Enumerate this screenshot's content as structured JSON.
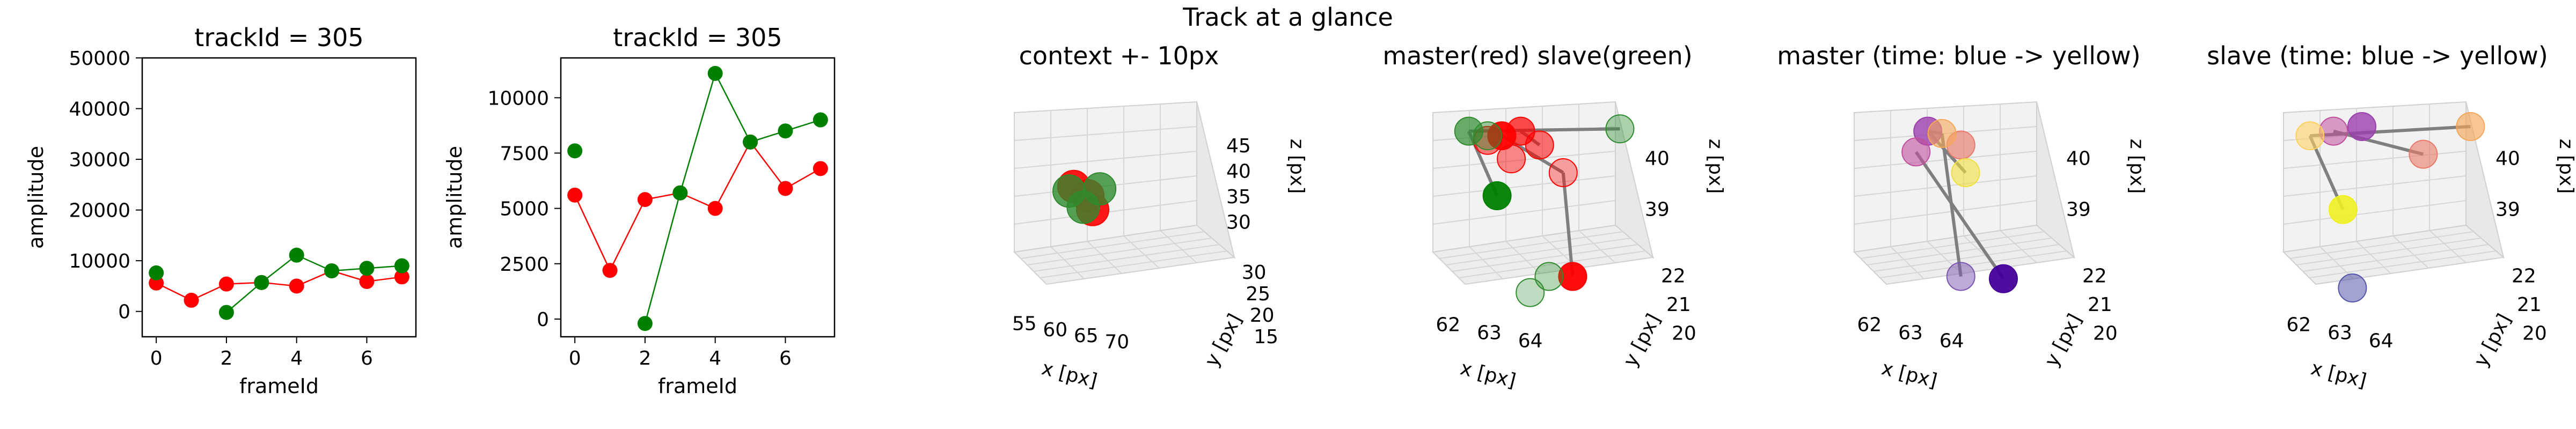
{
  "suptitle": "Track at a glance",
  "chart_data": [
    {
      "type": "line",
      "title": "trackId = 305",
      "xlabel": "frameId",
      "ylabel": "amplitude",
      "xlim": [
        -0.4,
        7.4
      ],
      "ylim": [
        -5000,
        50000
      ],
      "xticks": [
        0,
        2,
        4,
        6
      ],
      "yticks": [
        0,
        10000,
        20000,
        30000,
        40000,
        50000
      ],
      "ytick_labels": [
        "0",
        "10000",
        "20000",
        "30000",
        "40000",
        "50000"
      ],
      "series": [
        {
          "color": "#ff0000",
          "x": [
            0,
            1,
            2,
            3,
            4,
            5,
            6,
            7
          ],
          "values": [
            5600,
            2200,
            5400,
            5700,
            5000,
            8000,
            5900,
            6800
          ]
        },
        {
          "color": "#008000",
          "x": [
            0,
            2,
            3,
            4,
            5,
            6,
            7
          ],
          "values": [
            7600,
            -200,
            5700,
            11100,
            8000,
            8500,
            9000
          ],
          "connect_from": 1
        }
      ]
    },
    {
      "type": "line",
      "title": "trackId = 305",
      "xlabel": "frameId",
      "ylabel": "amplitude",
      "xlim": [
        -0.4,
        7.4
      ],
      "ylim": [
        -800,
        11800
      ],
      "xticks": [
        0,
        2,
        4,
        6
      ],
      "yticks": [
        0,
        2500,
        5000,
        7500,
        10000
      ],
      "ytick_labels": [
        "0",
        "2500",
        "5000",
        "7500",
        "10000"
      ],
      "series": [
        {
          "color": "#ff0000",
          "x": [
            0,
            1,
            2,
            3,
            4,
            5,
            6,
            7
          ],
          "values": [
            5600,
            2200,
            5400,
            5700,
            5000,
            8000,
            5900,
            6800
          ]
        },
        {
          "color": "#008000",
          "x": [
            0,
            2,
            3,
            4,
            5,
            6,
            7
          ],
          "values": [
            7600,
            -200,
            5700,
            11100,
            8000,
            8500,
            9000
          ],
          "connect_from": 1
        }
      ]
    },
    {
      "type": "scatter3d",
      "title": "context +- 10px",
      "xlabel": "x [px]",
      "ylabel": "y [px]",
      "zlabel": "z [px]",
      "xticks": [
        "55",
        "60",
        "65",
        "70"
      ],
      "yticks": [
        "15",
        "20",
        "25",
        "30"
      ],
      "zticks": [
        "30",
        "35",
        "40",
        "45"
      ],
      "points": [
        {
          "color": "#ff0000",
          "alpha": 0.9
        },
        {
          "color": "#ff0000",
          "alpha": 0.9
        },
        {
          "color": "#ff0000",
          "alpha": 0.9
        },
        {
          "color": "#2e8b2e",
          "alpha": 0.8
        },
        {
          "color": "#2e8b2e",
          "alpha": 0.8
        },
        {
          "color": "#2e8b2e",
          "alpha": 0.8
        }
      ]
    },
    {
      "type": "scatter3d",
      "title": "master(red) slave(green)",
      "xlabel": "x [px]",
      "ylabel": "y [px]",
      "zlabel": "z [px]",
      "xticks": [
        "62",
        "63",
        "64"
      ],
      "yticks": [
        "20",
        "21",
        "22"
      ],
      "zticks": [
        "39",
        "40"
      ],
      "points": [
        {
          "color": "#ff0000",
          "alpha": 0.95
        },
        {
          "color": "#ff0000",
          "alpha": 0.7
        },
        {
          "color": "#ff0000",
          "alpha": 0.55
        },
        {
          "color": "#ff0000",
          "alpha": 0.45
        },
        {
          "color": "#ff0000",
          "alpha": 0.5
        },
        {
          "color": "#ff0000",
          "alpha": 0.35
        },
        {
          "color": "#ff0000",
          "alpha": 0.95
        },
        {
          "color": "#008000",
          "alpha": 0.95
        },
        {
          "color": "#2e8b2e",
          "alpha": 0.7
        },
        {
          "color": "#2e8b2e",
          "alpha": 0.45
        },
        {
          "color": "#2e8b2e",
          "alpha": 0.4
        },
        {
          "color": "#2e8b2e",
          "alpha": 0.35
        },
        {
          "color": "#2e8b2e",
          "alpha": 0.3
        }
      ]
    },
    {
      "type": "scatter3d",
      "title": "master (time: blue -> yellow)",
      "xlabel": "x [px]",
      "ylabel": "y [px]",
      "zlabel": "z [px]",
      "xticks": [
        "62",
        "63",
        "64"
      ],
      "yticks": [
        "20",
        "21",
        "22"
      ],
      "zticks": [
        "39",
        "40"
      ],
      "points": [
        {
          "color": "#440099",
          "alpha": 0.95
        },
        {
          "color": "#7b55b0",
          "alpha": 0.5
        },
        {
          "color": "#9b3fae",
          "alpha": 0.8
        },
        {
          "color": "#c0509e",
          "alpha": 0.6
        },
        {
          "color": "#e87a6a",
          "alpha": 0.65
        },
        {
          "color": "#f5a85a",
          "alpha": 0.6
        },
        {
          "color": "#f0e040",
          "alpha": 0.6
        }
      ]
    },
    {
      "type": "scatter3d",
      "title": "slave (time: blue -> yellow)",
      "xlabel": "x [px]",
      "ylabel": "y [px]",
      "zlabel": "z [px]",
      "xticks": [
        "62",
        "63",
        "64"
      ],
      "yticks": [
        "20",
        "21",
        "22"
      ],
      "zticks": [
        "39",
        "40"
      ],
      "points": [
        {
          "color": "#5555aa",
          "alpha": 0.55
        },
        {
          "color": "#9b3fae",
          "alpha": 0.8
        },
        {
          "color": "#c0509e",
          "alpha": 0.55
        },
        {
          "color": "#e87a6a",
          "alpha": 0.6
        },
        {
          "color": "#f5a85a",
          "alpha": 0.65
        },
        {
          "color": "#ffd060",
          "alpha": 0.6
        },
        {
          "color": "#f0f020",
          "alpha": 0.9
        }
      ]
    }
  ]
}
